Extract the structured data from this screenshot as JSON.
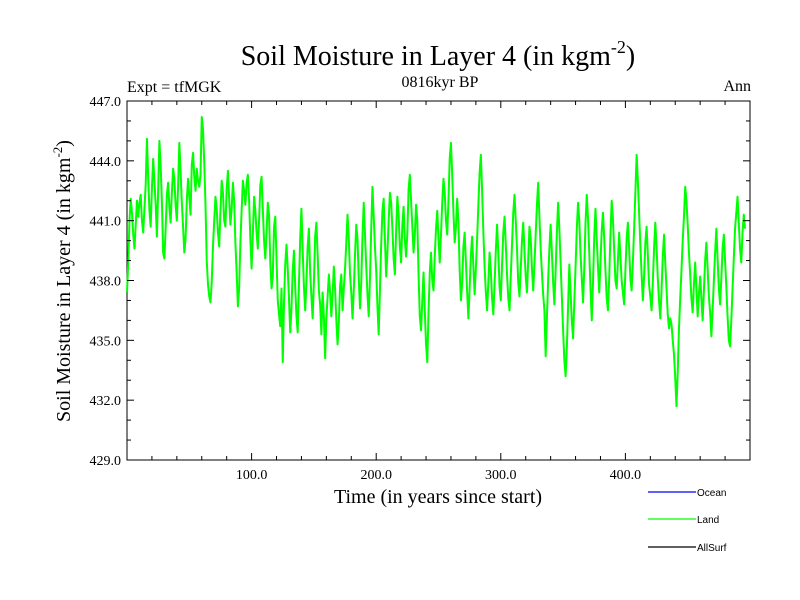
{
  "chart_data": {
    "type": "line",
    "title": "Soil Moisture in Layer 4 (in kgm",
    "title_superscript": "-2",
    "title_suffix": ")",
    "subtitle": "0816kyr BP",
    "left_label": "Expt = tfMGK",
    "right_label": "Ann",
    "xlabel": "Time (in years since start)",
    "ylabel": "Soil Moisture in Layer 4 (in kgm",
    "ylabel_superscript": "-2",
    "ylabel_suffix": ")",
    "xlim": [
      0,
      500
    ],
    "ylim": [
      429,
      447
    ],
    "x_ticks": [
      100,
      200,
      300,
      400
    ],
    "x_tick_labels": [
      "100.0",
      "200.0",
      "300.0",
      "400.0"
    ],
    "y_ticks": [
      429,
      432,
      435,
      438,
      441,
      444,
      447
    ],
    "y_tick_labels": [
      "429.0",
      "432.0",
      "435.0",
      "438.0",
      "441.0",
      "444.0",
      "447.0"
    ],
    "series": [
      {
        "name": "Ocean",
        "color": "#0000ff",
        "values": []
      },
      {
        "name": "Land",
        "color": "#00ff00",
        "x_start": 0,
        "x_step": 1,
        "values": [
          437.4,
          438.9,
          441.0,
          442.1,
          441.4,
          440.3,
          439.6,
          440.8,
          442.0,
          441.2,
          441.9,
          442.3,
          441.0,
          440.4,
          441.6,
          442.8,
          445.1,
          443.2,
          441.5,
          440.7,
          442.6,
          444.1,
          443.0,
          441.8,
          440.2,
          442.5,
          445.0,
          443.8,
          442.0,
          439.4,
          439.1,
          440.6,
          442.3,
          442.9,
          441.7,
          440.9,
          442.4,
          443.6,
          443.1,
          441.8,
          441.0,
          442.7,
          444.9,
          443.5,
          441.9,
          440.7,
          439.4,
          440.1,
          442.0,
          443.1,
          442.2,
          441.3,
          443.8,
          444.4,
          443.2,
          442.5,
          443.6,
          443.0,
          442.7,
          443.3,
          446.2,
          445.6,
          443.9,
          441.8,
          439.0,
          437.8,
          437.2,
          436.9,
          437.9,
          439.7,
          441.0,
          442.2,
          441.6,
          440.4,
          439.7,
          441.5,
          443.0,
          442.4,
          441.0,
          440.7,
          442.6,
          443.5,
          442.1,
          440.8,
          441.6,
          442.9,
          442.0,
          439.9,
          438.4,
          436.7,
          437.6,
          439.9,
          441.5,
          443.0,
          442.5,
          441.8,
          442.9,
          443.3,
          442.0,
          440.1,
          438.6,
          440.3,
          442.2,
          441.5,
          440.4,
          439.6,
          441.0,
          442.8,
          443.2,
          441.6,
          440.0,
          439.1,
          440.4,
          441.9,
          441.3,
          438.9,
          437.6,
          438.2,
          440.7,
          441.2,
          439.1,
          437.0,
          436.3,
          435.7,
          437.6,
          433.9,
          436.9,
          438.8,
          439.8,
          438.6,
          437.1,
          435.4,
          436.6,
          438.5,
          439.5,
          437.7,
          436.2,
          435.4,
          437.8,
          440.1,
          441.6,
          439.5,
          437.7,
          436.5,
          437.9,
          439.7,
          440.6,
          438.4,
          437.2,
          436.1,
          437.9,
          440.2,
          440.9,
          439.3,
          437.5,
          436.8,
          435.3,
          437.4,
          436.2,
          434.1,
          436.1,
          437.2,
          438.3,
          437.4,
          436.2,
          437.3,
          438.7,
          437.6,
          436.0,
          434.8,
          435.9,
          437.7,
          438.3,
          436.5,
          437.6,
          438.6,
          439.9,
          441.3,
          440.1,
          438.3,
          437.4,
          436.1,
          437.5,
          439.3,
          440.8,
          440.1,
          438.1,
          436.6,
          437.9,
          440.2,
          441.9,
          440.3,
          438.7,
          437.3,
          436.2,
          438.1,
          440.6,
          442.7,
          441.2,
          439.7,
          438.5,
          436.7,
          435.3,
          437.5,
          439.8,
          441.5,
          442.1,
          440.1,
          438.2,
          439.4,
          441.0,
          442.4,
          441.9,
          440.6,
          439.1,
          438.3,
          440.5,
          442.2,
          441.3,
          439.7,
          438.9,
          440.8,
          441.7,
          440.0,
          439.2,
          440.4,
          442.6,
          443.3,
          442.0,
          440.7,
          439.4,
          440.3,
          441.8,
          441.0,
          438.3,
          436.2,
          435.5,
          437.0,
          438.4,
          436.5,
          434.8,
          433.9,
          436.4,
          438.4,
          439.4,
          438.0,
          437.5,
          439.2,
          440.6,
          441.5,
          440.1,
          438.9,
          440.3,
          441.9,
          443.1,
          442.4,
          441.0,
          440.3,
          442.0,
          444.1,
          444.9,
          443.3,
          441.4,
          439.9,
          440.7,
          442.1,
          440.9,
          438.5,
          437.0,
          437.9,
          439.7,
          440.4,
          438.9,
          437.4,
          436.1,
          437.6,
          439.3,
          440.2,
          438.7,
          437.3,
          438.6,
          440.1,
          441.8,
          443.4,
          444.3,
          442.5,
          440.4,
          438.7,
          437.4,
          436.5,
          437.9,
          439.4,
          438.5,
          437.1,
          436.3,
          437.8,
          439.5,
          440.8,
          439.4,
          437.7,
          437.0,
          438.8,
          440.4,
          441.2,
          439.8,
          438.3,
          437.1,
          436.5,
          438.2,
          439.8,
          441.4,
          442.3,
          441.0,
          439.6,
          437.9,
          437.2,
          438.6,
          440.0,
          440.9,
          439.5,
          438.2,
          437.4,
          439.0,
          440.7,
          440.1,
          438.6,
          437.5,
          438.8,
          440.3,
          441.8,
          442.9,
          441.2,
          439.6,
          438.4,
          437.3,
          436.5,
          434.2,
          436.1,
          438.0,
          439.6,
          440.8,
          439.4,
          437.9,
          436.8,
          438.5,
          440.4,
          441.9,
          440.6,
          438.9,
          437.2,
          435.5,
          434.0,
          433.2,
          434.6,
          436.7,
          438.8,
          437.4,
          436.0,
          435.1,
          436.9,
          438.7,
          440.6,
          441.9,
          441.0,
          439.3,
          438.1,
          436.9,
          438.6,
          440.9,
          442.3,
          441.1,
          439.4,
          437.6,
          436.0,
          437.9,
          440.2,
          441.6,
          440.1,
          438.7,
          437.4,
          438.9,
          440.5,
          441.4,
          440.1,
          438.5,
          437.1,
          436.5,
          438.1,
          440.3,
          442.0,
          441.1,
          439.5,
          438.0,
          437.6,
          439.0,
          440.4,
          439.2,
          438.0,
          437.4,
          436.8,
          438.5,
          440.1,
          440.9,
          439.6,
          438.1,
          437.5,
          438.9,
          440.6,
          442.4,
          444.3,
          443.0,
          441.4,
          439.8,
          438.3,
          437.0,
          438.2,
          439.9,
          440.7,
          439.3,
          437.8,
          437.2,
          436.5,
          437.9,
          439.6,
          440.9,
          439.7,
          438.1,
          437.0,
          436.1,
          437.5,
          439.2,
          440.3,
          438.9,
          437.6,
          436.3,
          435.6,
          436.1,
          435.8,
          435.0,
          434.3,
          433.1,
          431.7,
          433.4,
          435.6,
          437.1,
          438.5,
          440.0,
          441.2,
          442.7,
          442.0,
          440.8,
          439.4,
          438.3,
          437.1,
          436.4,
          437.8,
          438.9,
          437.6,
          436.2,
          437.3,
          438.2,
          437.1,
          436.0,
          437.5,
          439.0,
          439.9,
          438.6,
          437.2,
          436.4,
          435.2,
          436.5,
          438.0,
          439.4,
          440.6,
          439.1,
          437.6,
          436.8,
          438.1,
          439.6,
          440.3,
          439.0,
          437.7,
          436.2,
          435.0,
          434.7,
          436.0,
          437.6,
          439.1,
          440.6,
          441.4,
          442.2,
          440.9,
          439.6,
          438.9,
          440.4,
          441.3,
          440.6
        ]
      },
      {
        "name": "AllSurf",
        "color": "#000000",
        "values": []
      }
    ],
    "legend": [
      {
        "name": "Ocean",
        "color": "#0000ff"
      },
      {
        "name": "Land",
        "color": "#00ff00"
      },
      {
        "name": "AllSurf",
        "color": "#000000"
      }
    ],
    "legend_position": "bottom-right",
    "grid": false
  }
}
